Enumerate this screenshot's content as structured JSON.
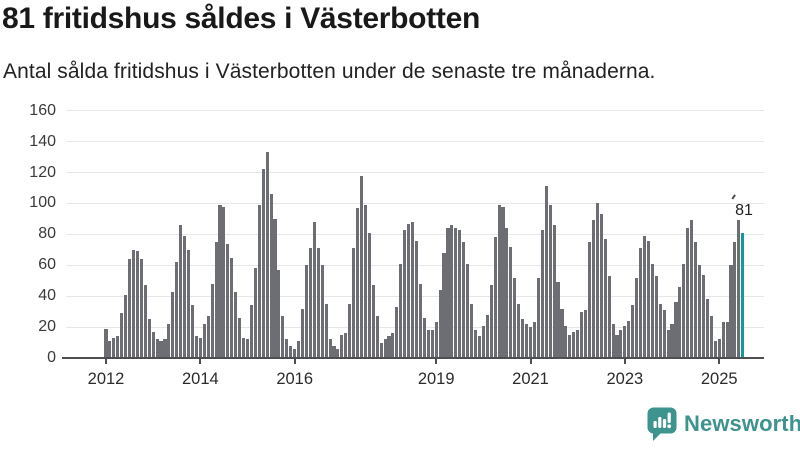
{
  "header": {
    "title": "81 fritidshus såldes i Västerbotten",
    "subtitle": "Antal sålda fritidshus i Västerbotten under de senaste tre månaderna."
  },
  "annotation": {
    "label": "81"
  },
  "footer": {
    "brand": "Newsworthy",
    "logo_icon": "newsworthy-speech-bubble-bar-chart-icon"
  },
  "colors": {
    "bar": "#6d6d74",
    "highlight": "#149a9b",
    "grid": "#e6e6e6",
    "axis": "#4d4d52",
    "title_text": "#191919",
    "axis_text": "#3a3a3a",
    "brand": "#3d938d"
  },
  "chart_data": {
    "type": "bar",
    "title": "81 fritidshus såldes i Västerbotten",
    "subtitle": "Antal sålda fritidshus i Västerbotten under de senaste tre månaderna.",
    "frequency": "monthly",
    "x_start": "2012-01",
    "x_end": "2025-07",
    "ylim": [
      0,
      160
    ],
    "grid": true,
    "y_ticks": [
      0,
      20,
      40,
      60,
      80,
      100,
      120,
      140,
      160
    ],
    "x_ticks": [
      {
        "label": "2012",
        "month_index": 0
      },
      {
        "label": "2014",
        "month_index": 24
      },
      {
        "label": "2016",
        "month_index": 48
      },
      {
        "label": "2019",
        "month_index": 84
      },
      {
        "label": "2021",
        "month_index": 108
      },
      {
        "label": "2023",
        "month_index": 132
      },
      {
        "label": "2025",
        "month_index": 156
      }
    ],
    "highlight_last_bar": true,
    "last_value_label": "81",
    "values": [
      19,
      11,
      13,
      14,
      29,
      41,
      64,
      70,
      69,
      64,
      47,
      25,
      17,
      12,
      11,
      12,
      22,
      43,
      62,
      86,
      79,
      70,
      34,
      14,
      13,
      22,
      27,
      48,
      75,
      99,
      98,
      74,
      65,
      43,
      26,
      13,
      12,
      34,
      58,
      99,
      122,
      133,
      106,
      90,
      57,
      27,
      12,
      8,
      6,
      11,
      32,
      60,
      71,
      88,
      71,
      60,
      35,
      12,
      8,
      6,
      15,
      16,
      35,
      71,
      97,
      118,
      99,
      81,
      47,
      27,
      10,
      12,
      14,
      16,
      33,
      61,
      83,
      87,
      88,
      76,
      48,
      26,
      18,
      18,
      23,
      44,
      68,
      84,
      86,
      84,
      83,
      75,
      61,
      35,
      18,
      14,
      21,
      28,
      47,
      78,
      99,
      98,
      84,
      72,
      52,
      35,
      25,
      22,
      20,
      23,
      52,
      83,
      111,
      99,
      86,
      49,
      32,
      21,
      15,
      17,
      18,
      30,
      31,
      75,
      89,
      100,
      93,
      77,
      53,
      22,
      15,
      18,
      21,
      24,
      34,
      52,
      71,
      79,
      76,
      61,
      53,
      35,
      31,
      18,
      22,
      36,
      46,
      61,
      84,
      89,
      75,
      60,
      54,
      38,
      27,
      11,
      12,
      23,
      23,
      60,
      75,
      89,
      81
    ]
  }
}
